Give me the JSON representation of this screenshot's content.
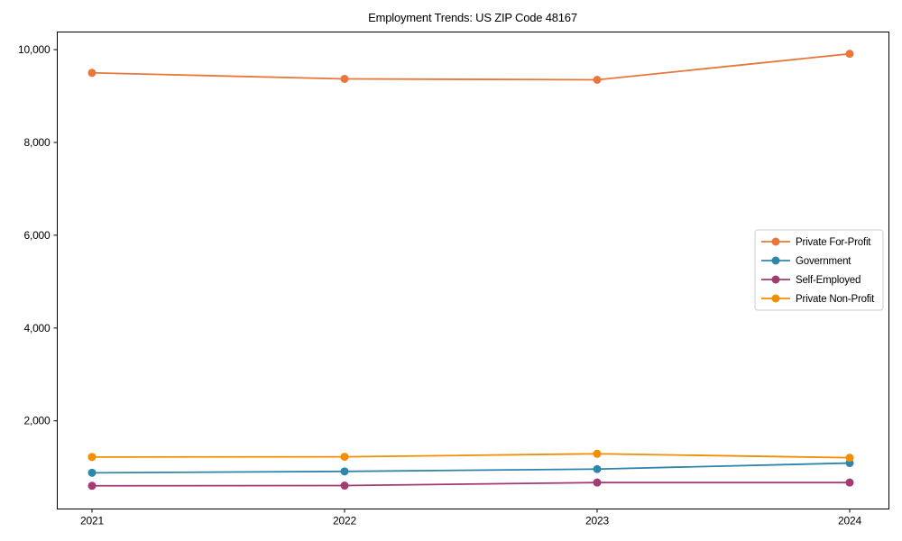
{
  "title": "Employment Trends: US ZIP Code 48167",
  "chart_data": {
    "type": "line",
    "title": "Employment Trends: US ZIP Code 48167",
    "xlabel": "",
    "ylabel": "",
    "categories": [
      "2021",
      "2022",
      "2023",
      "2024"
    ],
    "series": [
      {
        "name": "Private For-Profit",
        "color": "#E8773B",
        "values": [
          9500,
          9370,
          9350,
          9910
        ]
      },
      {
        "name": "Government",
        "color": "#2E86AB",
        "values": [
          880,
          910,
          960,
          1090
        ]
      },
      {
        "name": "Self-Employed",
        "color": "#A23B72",
        "values": [
          600,
          605,
          670,
          670
        ]
      },
      {
        "name": "Private Non-Profit",
        "color": "#F18F01",
        "values": [
          1220,
          1225,
          1290,
          1205
        ]
      }
    ],
    "y_ticks": [
      2000,
      4000,
      6000,
      8000,
      10000
    ],
    "y_tick_labels": [
      "2,000",
      "4,000",
      "6,000",
      "8,000",
      "10,000"
    ],
    "ylim": [
      100,
      10380
    ],
    "grid": false,
    "plot_background": "#ffffff",
    "spine_color": "#000000",
    "legend_position": "right-middle",
    "legend_border_color": "#cccccc"
  }
}
